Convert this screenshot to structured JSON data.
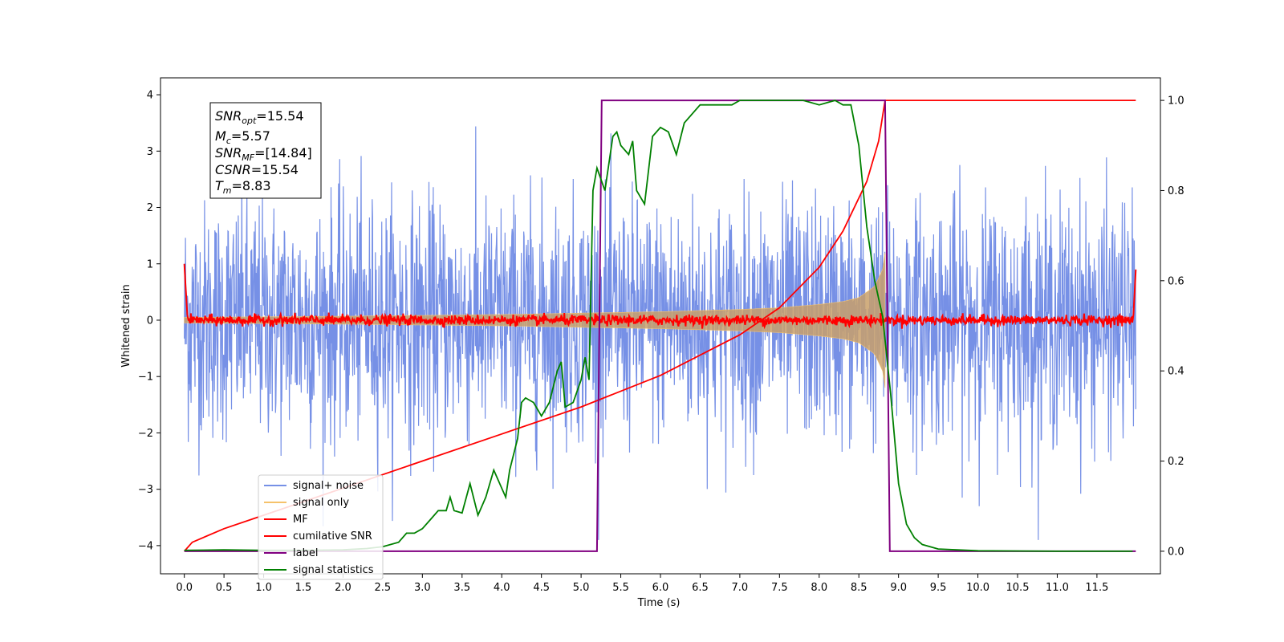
{
  "chart_data": {
    "type": "line",
    "xlabel": "Time (s)",
    "ylabel": "Whitened strain",
    "xlim": [
      -0.3,
      12.3
    ],
    "ylim": [
      -4.5,
      4.3
    ],
    "y2lim": [
      -0.05,
      1.05
    ],
    "x_ticks": [
      "0.0",
      "0.5",
      "1.0",
      "1.5",
      "2.0",
      "2.5",
      "3.0",
      "3.5",
      "4.0",
      "4.5",
      "5.0",
      "5.5",
      "6.0",
      "6.5",
      "7.0",
      "7.5",
      "8.0",
      "8.5",
      "9.0",
      "9.5",
      "10.0",
      "10.5",
      "11.0",
      "11.5"
    ],
    "y_ticks": [
      "4",
      "3",
      "2",
      "1",
      "0",
      "−1",
      "−2",
      "−3",
      "−4"
    ],
    "y2_ticks": [
      "1.0",
      "0.8",
      "0.6",
      "0.4",
      "0.2",
      "0.0"
    ],
    "grid": false,
    "legend_position": "lower-left",
    "annotation": {
      "snr_opt": {
        "base": "SNR",
        "sub": "opt",
        "value": "=15.54"
      },
      "mc": {
        "base": "M",
        "sub": "c",
        "value": "=5.57"
      },
      "snr_mf": {
        "base": "SNR",
        "sub": "MF",
        "value": "=[14.84]"
      },
      "csnr": {
        "base": "CSNR",
        "sub": "",
        "value": "=15.54"
      },
      "tm": {
        "base": "T",
        "sub": "m",
        "value": "=8.83"
      }
    },
    "series": [
      {
        "name": "signal+ noise",
        "color": "#7690e6",
        "axis": "left",
        "description_amplitude": 1.0,
        "x_range": [
          0,
          11.99
        ]
      },
      {
        "name": "signal only",
        "color": "#f5c26b",
        "axis": "left",
        "envelope": {
          "x": [
            0,
            2,
            4,
            6,
            7,
            7.5,
            8,
            8.3,
            8.5,
            8.7,
            8.8,
            8.83
          ],
          "y": [
            0.05,
            0.07,
            0.1,
            0.15,
            0.19,
            0.22,
            0.28,
            0.33,
            0.4,
            0.6,
            0.9,
            1.2
          ]
        }
      },
      {
        "name": "MF",
        "color": "#ff0000",
        "axis": "left",
        "x_range": [
          0,
          11.99
        ]
      },
      {
        "name": "cumilative SNR",
        "color": "#ff0000",
        "axis": "right",
        "x": [
          0,
          0.1,
          0.5,
          1,
          2,
          3,
          4,
          5,
          6,
          7,
          7.5,
          8,
          8.3,
          8.6,
          8.75,
          8.83,
          11.99
        ],
        "y": [
          0.0,
          0.02,
          0.05,
          0.08,
          0.14,
          0.2,
          0.26,
          0.32,
          0.39,
          0.48,
          0.54,
          0.63,
          0.71,
          0.82,
          0.91,
          1.0,
          1.0
        ]
      },
      {
        "name": "label",
        "color": "#800080",
        "axis": "right",
        "x": [
          0,
          5.2,
          5.26,
          8.83,
          8.89,
          11.99
        ],
        "y": [
          0,
          0,
          1,
          1,
          0,
          0
        ]
      },
      {
        "name": "signal statistics",
        "color": "#008000",
        "axis": "right",
        "x": [
          0,
          0.5,
          1,
          1.5,
          2,
          2.3,
          2.5,
          2.7,
          2.8,
          2.9,
          3.0,
          3.1,
          3.2,
          3.3,
          3.35,
          3.4,
          3.5,
          3.6,
          3.7,
          3.8,
          3.9,
          4.0,
          4.05,
          4.1,
          4.2,
          4.25,
          4.3,
          4.4,
          4.5,
          4.6,
          4.7,
          4.75,
          4.8,
          4.9,
          5.0,
          5.05,
          5.1,
          5.15,
          5.2,
          5.3,
          5.4,
          5.45,
          5.5,
          5.6,
          5.65,
          5.7,
          5.8,
          5.9,
          6.0,
          6.1,
          6.2,
          6.3,
          6.5,
          6.7,
          6.9,
          7.0,
          7.2,
          7.5,
          7.8,
          8.0,
          8.2,
          8.3,
          8.4,
          8.5,
          8.6,
          8.7,
          8.8,
          8.9,
          9.0,
          9.1,
          9.2,
          9.3,
          9.5,
          10,
          11,
          11.95
        ],
        "y": [
          0.002,
          0.003,
          0.002,
          0.002,
          0.003,
          0.006,
          0.01,
          0.02,
          0.04,
          0.04,
          0.05,
          0.07,
          0.09,
          0.09,
          0.12,
          0.09,
          0.085,
          0.15,
          0.08,
          0.12,
          0.18,
          0.14,
          0.12,
          0.18,
          0.25,
          0.33,
          0.34,
          0.33,
          0.3,
          0.33,
          0.4,
          0.42,
          0.32,
          0.33,
          0.38,
          0.43,
          0.38,
          0.8,
          0.85,
          0.8,
          0.92,
          0.93,
          0.9,
          0.88,
          0.91,
          0.8,
          0.77,
          0.92,
          0.94,
          0.93,
          0.88,
          0.95,
          0.99,
          0.99,
          0.99,
          1.0,
          1.0,
          1.0,
          1.0,
          0.99,
          1.0,
          0.99,
          0.99,
          0.9,
          0.72,
          0.6,
          0.52,
          0.35,
          0.15,
          0.06,
          0.03,
          0.015,
          0.005,
          0.001,
          0.0,
          0.0
        ]
      }
    ]
  }
}
